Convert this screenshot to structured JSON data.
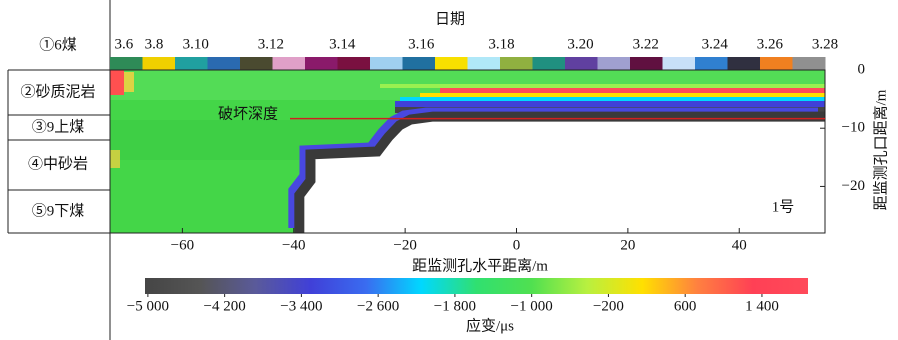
{
  "chart_data": {
    "type": "heatmap-boundary",
    "top_axis_title": "日期",
    "x_axis_title": "距监测孔水平距离/m",
    "y_axis_title": "距监测孔口距离/m",
    "colorbar_title": "应变/μs",
    "annotation": "破坏深度",
    "panel_label": "1号",
    "strata": [
      "①6煤",
      "②砂质泥岩",
      "③9上煤",
      "④中砂岩",
      "⑤9下煤"
    ],
    "date_axis": {
      "labels": [
        "3.6",
        "3.8",
        "3.10",
        "3.12",
        "3.14",
        "3.16",
        "3.18",
        "3.20",
        "3.22",
        "3.24",
        "3.26",
        "3.28"
      ],
      "x": [
        -70.5,
        -65.1,
        -57.6,
        -44.1,
        -31.3,
        -17.1,
        -2.7,
        11.5,
        23.2,
        35.6,
        45.5,
        55.4
      ]
    },
    "xlim": [
      -73,
      55.4
    ],
    "xticks": [
      {
        "value": -60,
        "label": "−60"
      },
      {
        "value": -40,
        "label": "−40"
      },
      {
        "value": -20,
        "label": "−20"
      },
      0,
      20,
      40
    ],
    "ylim": [
      -28,
      0
    ],
    "yticks": [
      0,
      {
        "value": -10,
        "label": "−10"
      },
      {
        "value": -20,
        "label": "−20"
      }
    ],
    "series": [
      {
        "name": "破坏深度",
        "color": "#3a3a3a",
        "x": [
          -39,
          -39,
          -37,
          -37,
          -25,
          -23,
          -21,
          -19,
          -15,
          55.4
        ],
        "values": [
          -28,
          -21.5,
          -19,
          -14.5,
          -14,
          -11.5,
          -9.5,
          -8.5,
          -8,
          -8
        ]
      }
    ],
    "clim": [
      -5030,
      1880
    ],
    "cticks": [
      {
        "value": -5000,
        "label": "−5 000"
      },
      {
        "value": -4200,
        "label": "−4 200"
      },
      {
        "value": -3400,
        "label": "−3 400"
      },
      {
        "value": -2600,
        "label": "−2 600"
      },
      {
        "value": -1800,
        "label": "−1 800"
      },
      {
        "value": -1000,
        "label": "−1 000"
      },
      {
        "value": -200,
        "label": "−200"
      },
      600,
      {
        "value": 1400,
        "label": "1 400"
      }
    ],
    "colormap": [
      "#454545",
      "#555555",
      "#5a5a9a",
      "#4040d8",
      "#3a6cf0",
      "#00d8ff",
      "#30e070",
      "#50e050",
      "#b8f040",
      "#ffe000",
      "#ff8040",
      "#ff4055",
      "#ff4a5a"
    ]
  }
}
